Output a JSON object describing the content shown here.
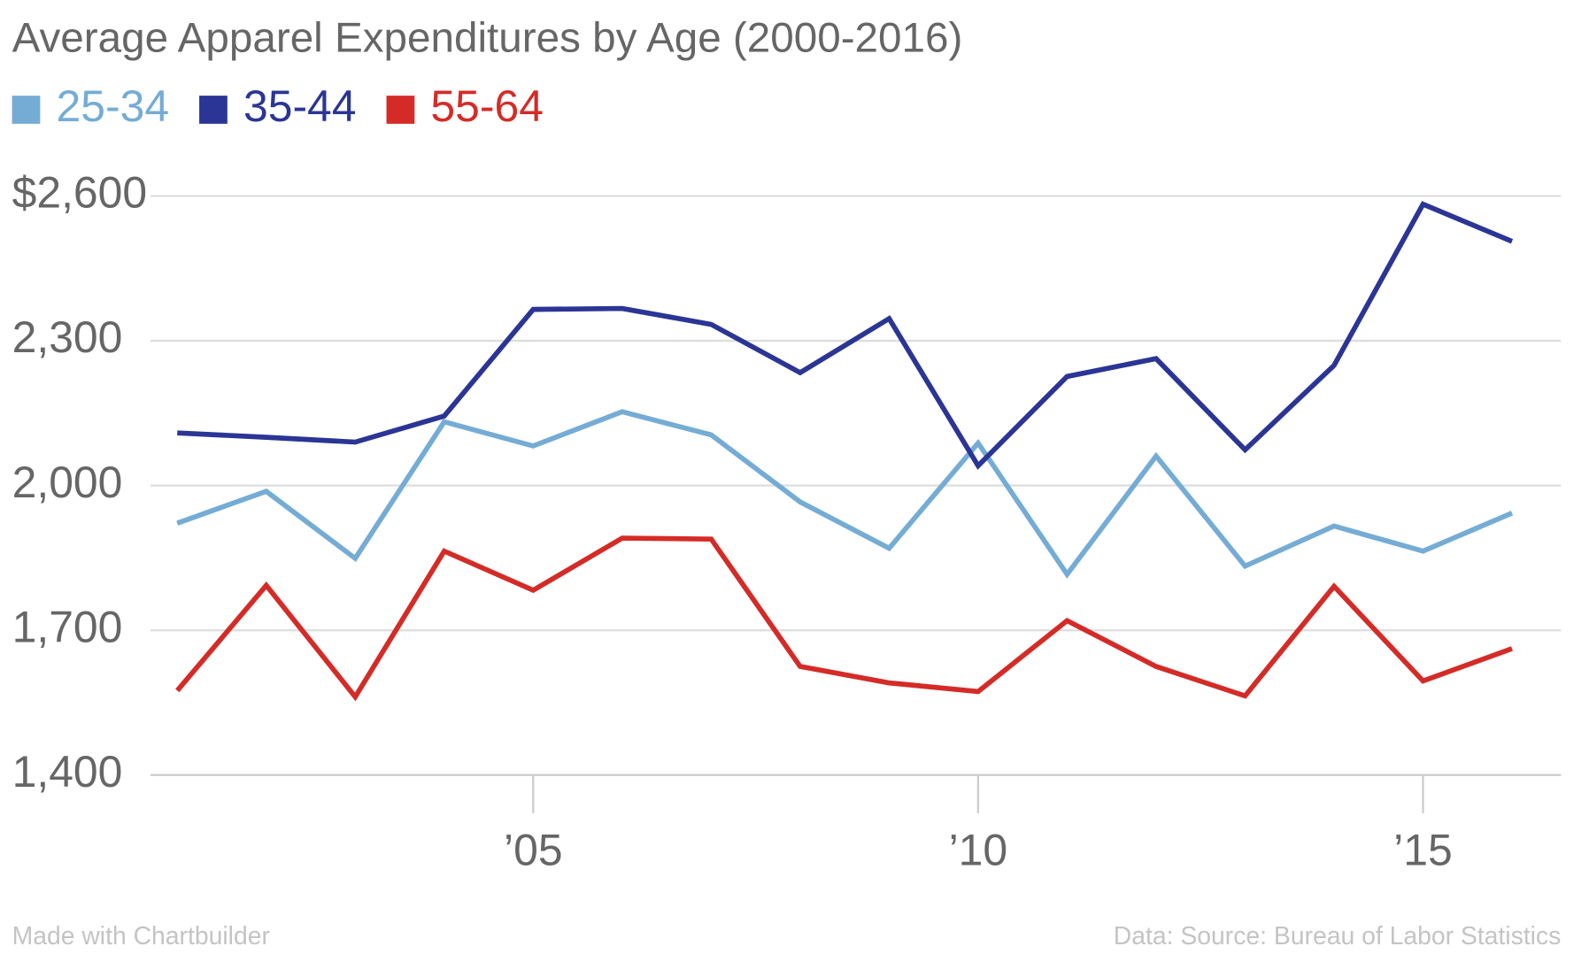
{
  "chart_data": {
    "type": "line",
    "title": "Average Apparel Expenditures by Age (2000-2016)",
    "x": [
      2001,
      2002,
      2003,
      2004,
      2005,
      2006,
      2007,
      2008,
      2009,
      2010,
      2011,
      2012,
      2013,
      2014,
      2015,
      2016
    ],
    "series": [
      {
        "name": "25-34",
        "color": "#74acd5",
        "values": [
          1922,
          1988,
          1849,
          2132,
          2082,
          2153,
          2105,
          1966,
          1870,
          2088,
          1816,
          2061,
          1833,
          1916,
          1864,
          1943
        ]
      },
      {
        "name": "35-44",
        "color": "#2b3595",
        "values": [
          2109,
          2100,
          2090,
          2144,
          2365,
          2367,
          2334,
          2234,
          2346,
          2041,
          2226,
          2263,
          2074,
          2249,
          2583,
          2506
        ]
      },
      {
        "name": "55-64",
        "color": "#d52b27",
        "values": [
          1575,
          1793,
          1562,
          1864,
          1783,
          1891,
          1889,
          1625,
          1591,
          1573,
          1720,
          1625,
          1564,
          1791,
          1595,
          1662
        ]
      }
    ],
    "xlim": [
      2000.7,
      2016.55
    ],
    "xticks": [
      {
        "value": 2005,
        "label": "’05"
      },
      {
        "value": 2010,
        "label": "’10"
      },
      {
        "value": 2015,
        "label": "’15"
      }
    ],
    "ylim": [
      1400,
      2600
    ],
    "yticks": [
      {
        "value": 1400,
        "label": "1,400"
      },
      {
        "value": 1700,
        "label": "1,700"
      },
      {
        "value": 2000,
        "label": "2,000"
      },
      {
        "value": 2300,
        "label": "2,300"
      },
      {
        "value": 2600,
        "label": "$2,600"
      }
    ],
    "grid": true,
    "legend": "top-left",
    "credit": "Made with Chartbuilder",
    "source": "Data: Source: Bureau of Labor Statistics"
  }
}
